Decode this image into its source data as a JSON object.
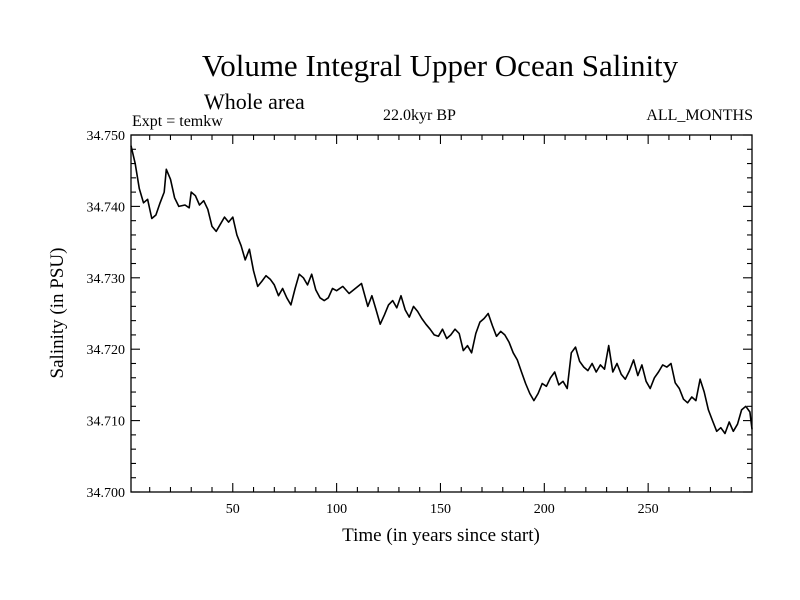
{
  "chart_data": {
    "type": "line",
    "title": "Volume Integral Upper Ocean Salinity",
    "subtitle": "Whole area",
    "experiment_label": "Expt = temkw",
    "period_label": "22.0kyr BP",
    "months_label": "ALL_MONTHS",
    "xlabel": "Time (in years since start)",
    "ylabel": "Salinity (in PSU)",
    "xlim": [
      1,
      300
    ],
    "ylim": [
      34.7,
      34.75
    ],
    "x_ticks": [
      50,
      100,
      150,
      200,
      250
    ],
    "x_tick_labels": [
      "50",
      "100",
      "150",
      "200",
      "250"
    ],
    "y_ticks": [
      34.7,
      34.71,
      34.72,
      34.73,
      34.74,
      34.75
    ],
    "y_tick_labels": [
      "34.700",
      "34.710",
      "34.720",
      "34.730",
      "34.740",
      "34.750"
    ],
    "grid": false,
    "series": [
      {
        "name": "Salinity",
        "color": "#000000",
        "x": [
          1,
          3,
          5,
          7,
          9,
          11,
          13,
          15,
          17,
          18,
          20,
          22,
          24,
          27,
          29,
          30,
          32,
          34,
          36,
          38,
          40,
          42,
          44,
          46,
          48,
          50,
          52,
          54,
          56,
          58,
          60,
          62,
          64,
          66,
          68,
          70,
          72,
          74,
          76,
          78,
          80,
          82,
          84,
          86,
          88,
          90,
          92,
          94,
          96,
          98,
          100,
          103,
          106,
          109,
          112,
          115,
          117,
          119,
          121,
          123,
          125,
          127,
          129,
          131,
          133,
          135,
          137,
          139,
          141,
          143,
          145,
          147,
          149,
          151,
          153,
          155,
          157,
          159,
          161,
          163,
          165,
          167,
          169,
          171,
          173,
          175,
          177,
          179,
          181,
          183,
          185,
          187,
          189,
          191,
          193,
          195,
          197,
          199,
          201,
          203,
          205,
          207,
          209,
          211,
          213,
          215,
          217,
          219,
          221,
          223,
          225,
          227,
          229,
          231,
          233,
          235,
          237,
          239,
          241,
          243,
          245,
          247,
          249,
          251,
          253,
          255,
          257,
          259,
          261,
          263,
          265,
          267,
          269,
          271,
          273,
          275,
          277,
          279,
          281,
          283,
          285,
          287,
          289,
          291,
          293,
          295,
          297,
          299,
          300
        ],
        "y": [
          34.7485,
          34.746,
          34.7425,
          34.7405,
          34.741,
          34.7383,
          34.7388,
          34.7405,
          34.742,
          34.7452,
          34.7438,
          34.7412,
          34.74,
          34.7402,
          34.7398,
          34.742,
          34.7415,
          34.7402,
          34.7408,
          34.7396,
          34.7372,
          34.7365,
          34.7375,
          34.7385,
          34.7378,
          34.7385,
          34.736,
          34.7345,
          34.7325,
          34.734,
          34.731,
          34.7288,
          34.7295,
          34.7303,
          34.7298,
          34.729,
          34.7275,
          34.7285,
          34.7272,
          34.7262,
          34.7285,
          34.7305,
          34.73,
          34.729,
          34.7305,
          34.7283,
          34.7272,
          34.7268,
          34.7272,
          34.7285,
          34.7282,
          34.7288,
          34.7278,
          34.7285,
          34.7292,
          34.726,
          34.7275,
          34.7255,
          34.7235,
          34.7248,
          34.7262,
          34.7268,
          34.7258,
          34.7275,
          34.7255,
          34.7245,
          34.726,
          34.7253,
          34.7243,
          34.7235,
          34.7228,
          34.722,
          34.7218,
          34.7228,
          34.7215,
          34.722,
          34.7228,
          34.7222,
          34.7198,
          34.7205,
          34.7195,
          34.7222,
          34.7238,
          34.7243,
          34.725,
          34.7233,
          34.7218,
          34.7225,
          34.722,
          34.721,
          34.7195,
          34.7185,
          34.7168,
          34.7152,
          34.7138,
          34.7128,
          34.7138,
          34.7152,
          34.7148,
          34.716,
          34.7168,
          34.715,
          34.7155,
          34.7145,
          34.7195,
          34.7203,
          34.7183,
          34.7175,
          34.717,
          34.718,
          34.7168,
          34.7178,
          34.7172,
          34.7205,
          34.7168,
          34.718,
          34.7165,
          34.7158,
          34.717,
          34.7185,
          34.7163,
          34.7178,
          34.7155,
          34.7145,
          34.716,
          34.7168,
          34.7178,
          34.7175,
          34.718,
          34.7153,
          34.7145,
          34.713,
          34.7125,
          34.7133,
          34.7128,
          34.7158,
          34.714,
          34.7115,
          34.71,
          34.7085,
          34.709,
          34.7082,
          34.7098,
          34.7085,
          34.7095,
          34.7115,
          34.712,
          34.7112,
          34.7088
        ]
      }
    ]
  }
}
